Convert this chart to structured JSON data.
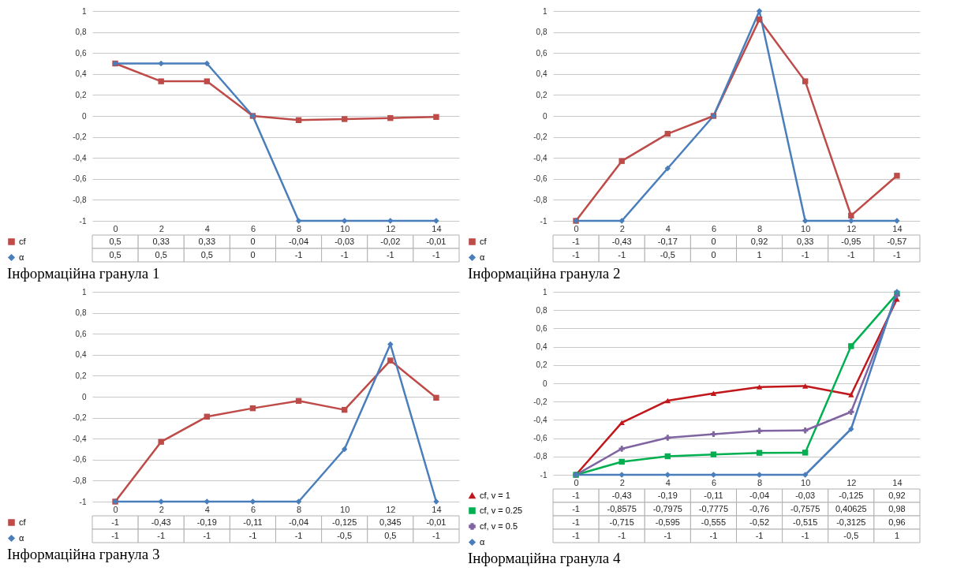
{
  "chart_data": [
    {
      "type": "line",
      "title": "Інформаційна гранула 1",
      "categories": [
        "0",
        "2",
        "4",
        "6",
        "8",
        "10",
        "12",
        "14"
      ],
      "ylim": [
        -1,
        1
      ],
      "yticks": [
        -1,
        {
          "value": -0.8,
          "label": "-0,8"
        },
        {
          "value": -0.6,
          "label": "-0,6"
        },
        {
          "value": -0.4,
          "label": "-0,4"
        },
        {
          "value": -0.2,
          "label": "-0,2"
        },
        0,
        {
          "value": 0.2,
          "label": "0,2"
        },
        {
          "value": 0.4,
          "label": "0,4"
        },
        {
          "value": 0.6,
          "label": "0,6"
        },
        {
          "value": 0.8,
          "label": "0,8"
        },
        1
      ],
      "grid": "y",
      "legend": "bottom left",
      "series": [
        {
          "name": "cf",
          "color": "#be4b48",
          "marker": "square",
          "values": [
            0.5,
            0.33,
            0.33,
            0,
            -0.04,
            -0.03,
            -0.02,
            -0.01
          ],
          "value_labels": [
            "0,5",
            "0,33",
            "0,33",
            "0",
            "-0,04",
            "-0,03",
            "-0,02",
            "-0,01"
          ]
        },
        {
          "name": "α",
          "color": "#4a7ebb",
          "marker": "diamond",
          "values": [
            0.5,
            0.5,
            0.5,
            0,
            -1,
            -1,
            -1,
            -1
          ],
          "value_labels": [
            "0,5",
            "0,5",
            "0,5",
            "0",
            "-1",
            "-1",
            "-1",
            "-1"
          ]
        }
      ]
    },
    {
      "type": "line",
      "title": "Інформаційна гранула 2",
      "categories": [
        "0",
        "2",
        "4",
        "6",
        "8",
        "10",
        "12",
        "14"
      ],
      "ylim": [
        -1,
        1
      ],
      "yticks": [
        -1,
        {
          "value": -0.8,
          "label": "-0,8"
        },
        {
          "value": -0.6,
          "label": "-0,6"
        },
        {
          "value": -0.4,
          "label": "-0,4"
        },
        {
          "value": -0.2,
          "label": "-0,2"
        },
        0,
        {
          "value": 0.2,
          "label": "0,2"
        },
        {
          "value": 0.4,
          "label": "0,4"
        },
        {
          "value": 0.6,
          "label": "0,6"
        },
        {
          "value": 0.8,
          "label": "0,8"
        },
        1
      ],
      "grid": "y",
      "legend": "bottom left",
      "series": [
        {
          "name": "cf",
          "color": "#be4b48",
          "marker": "square",
          "values": [
            -1,
            -0.43,
            -0.17,
            0,
            0.92,
            0.33,
            -0.95,
            -0.57
          ],
          "value_labels": [
            "-1",
            "-0,43",
            "-0,17",
            "0",
            "0,92",
            "0,33",
            "-0,95",
            "-0,57"
          ]
        },
        {
          "name": "α",
          "color": "#4a7ebb",
          "marker": "diamond",
          "values": [
            -1,
            -1,
            -0.5,
            0,
            1,
            -1,
            -1,
            -1
          ],
          "value_labels": [
            "-1",
            "-1",
            "-0,5",
            "0",
            "1",
            "-1",
            "-1",
            "-1"
          ]
        }
      ]
    },
    {
      "type": "line",
      "title": "Інформаційна гранула 3",
      "categories": [
        "0",
        "2",
        "4",
        "6",
        "8",
        "10",
        "12",
        "14"
      ],
      "ylim": [
        -1,
        1
      ],
      "yticks": [
        -1,
        {
          "value": -0.8,
          "label": "-0,8"
        },
        {
          "value": -0.6,
          "label": "-0,6"
        },
        {
          "value": -0.4,
          "label": "-0,4"
        },
        {
          "value": -0.2,
          "label": "-0,2"
        },
        0,
        {
          "value": 0.2,
          "label": "0,2"
        },
        {
          "value": 0.4,
          "label": "0,4"
        },
        {
          "value": 0.6,
          "label": "0,6"
        },
        {
          "value": 0.8,
          "label": "0,8"
        },
        1
      ],
      "grid": "y",
      "legend": "bottom left",
      "series": [
        {
          "name": "cf",
          "color": "#be4b48",
          "marker": "square",
          "values": [
            -1,
            -0.43,
            -0.19,
            -0.11,
            -0.04,
            -0.125,
            0.345,
            -0.01
          ],
          "value_labels": [
            "-1",
            "-0,43",
            "-0,19",
            "-0,11",
            "-0,04",
            "-0,125",
            "0,345",
            "-0,01"
          ]
        },
        {
          "name": "α",
          "color": "#4a7ebb",
          "marker": "diamond",
          "values": [
            -1,
            -1,
            -1,
            -1,
            -1,
            -0.5,
            0.5,
            -1
          ],
          "value_labels": [
            "-1",
            "-1",
            "-1",
            "-1",
            "-1",
            "-0,5",
            "0,5",
            "-1"
          ]
        }
      ]
    },
    {
      "type": "line",
      "title": "Інформаційна гранула 4",
      "categories": [
        "0",
        "2",
        "4",
        "6",
        "8",
        "10",
        "12",
        "14"
      ],
      "ylim": [
        -1,
        1
      ],
      "yticks": [
        -1,
        {
          "value": -0.8,
          "label": "-0,8"
        },
        {
          "value": -0.6,
          "label": "-0,6"
        },
        {
          "value": -0.4,
          "label": "-0,4"
        },
        {
          "value": -0.2,
          "label": "-0,2"
        },
        0,
        {
          "value": 0.2,
          "label": "0,2"
        },
        {
          "value": 0.4,
          "label": "0,4"
        },
        {
          "value": 0.6,
          "label": "0,6"
        },
        {
          "value": 0.8,
          "label": "0,8"
        },
        1
      ],
      "grid": "y",
      "legend": "bottom left",
      "series": [
        {
          "name": "cf, v = 1",
          "color": "#c0171b",
          "marker": "triangle",
          "values": [
            -1,
            -0.43,
            -0.19,
            -0.11,
            -0.04,
            -0.03,
            -0.125,
            0.92
          ],
          "value_labels": [
            "-1",
            "-0,43",
            "-0,19",
            "-0,11",
            "-0,04",
            "-0,03",
            "-0,125",
            "0,92"
          ]
        },
        {
          "name": "cf, v = 0.25",
          "color": "#00b050",
          "marker": "square",
          "values": [
            -1,
            -0.8575,
            -0.7975,
            -0.7775,
            -0.76,
            -0.7575,
            0.40625,
            0.98
          ],
          "value_labels": [
            "-1",
            "-0,8575",
            "-0,7975",
            "-0,7775",
            "-0,76",
            "-0,7575",
            "0,40625",
            "0,98"
          ]
        },
        {
          "name": "cf, v = 0.5",
          "color": "#8064a2",
          "marker": "cross",
          "values": [
            -1,
            -0.715,
            -0.595,
            -0.555,
            -0.52,
            -0.515,
            -0.3125,
            0.96
          ],
          "value_labels": [
            "-1",
            "-0,715",
            "-0,595",
            "-0,555",
            "-0,52",
            "-0,515",
            "-0,3125",
            "0,96"
          ]
        },
        {
          "name": "α",
          "color": "#4a7ebb",
          "marker": "diamond",
          "values": [
            -1,
            -1,
            -1,
            -1,
            -1,
            -1,
            -0.5,
            1
          ],
          "value_labels": [
            "-1",
            "-1",
            "-1",
            "-1",
            "-1",
            "-1",
            "-0,5",
            "1"
          ]
        }
      ]
    }
  ]
}
